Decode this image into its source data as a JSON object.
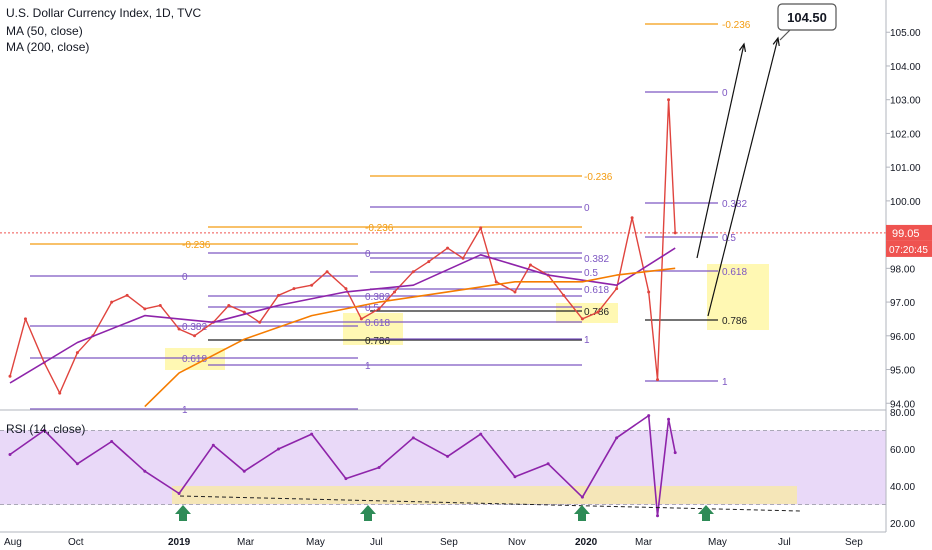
{
  "chart_data": {
    "type": "line",
    "title": "U.S. Dollar Currency Index, 1D, TVC",
    "indicators": [
      "MA (50, close)",
      "MA (200, close)"
    ],
    "rsi_label": "RSI (14, close)",
    "price_axis": {
      "ylim": [
        93.8,
        105.6
      ],
      "ticks": [
        "105.00",
        "104.00",
        "103.00",
        "102.00",
        "101.00",
        "100.00",
        "99.00",
        "98.00",
        "97.00",
        "96.00",
        "95.00",
        "94.00"
      ]
    },
    "rsi_axis": {
      "ylim": [
        19,
        81
      ],
      "ticks": [
        "80.00",
        "60.00",
        "40.00",
        "20.00"
      ],
      "band": [
        30,
        70
      ]
    },
    "x_axis_labels": [
      "Aug",
      "Oct",
      "2019",
      "Mar",
      "May",
      "Jul",
      "Sep",
      "Nov",
      "2020",
      "Mar",
      "May",
      "Jul",
      "Sep"
    ],
    "current_price": "99.05",
    "countdown": "07:20:45",
    "target_callout": "104.50",
    "fib_labels": {
      "set1": [
        "-0.236",
        "0",
        "0.382",
        "0.618",
        "1"
      ],
      "set2": [
        "-0.236",
        "0",
        "0.382",
        "0.5",
        "0.618",
        "0.786",
        "1"
      ],
      "set3": [
        "-0.236",
        "0",
        "0.382",
        "0.5",
        "0.618",
        "0.786",
        "1"
      ],
      "set4": [
        "-0.236",
        "0",
        "0.382",
        "0.5",
        "0.618",
        "0.786",
        "1"
      ]
    },
    "series": [
      {
        "name": "U.S. Dollar Currency Index",
        "x": [
          "2018-08-01",
          "2018-08-15",
          "2018-09-01",
          "2018-09-15",
          "2018-10-01",
          "2018-10-15",
          "2018-11-01",
          "2018-11-15",
          "2018-12-01",
          "2018-12-15",
          "2019-01-01",
          "2019-01-15",
          "2019-02-01",
          "2019-02-15",
          "2019-03-01",
          "2019-03-15",
          "2019-04-01",
          "2019-04-15",
          "2019-05-01",
          "2019-05-15",
          "2019-06-01",
          "2019-06-15",
          "2019-07-01",
          "2019-07-15",
          "2019-08-01",
          "2019-08-15",
          "2019-09-01",
          "2019-09-15",
          "2019-10-01",
          "2019-10-15",
          "2019-11-01",
          "2019-11-15",
          "2019-12-01",
          "2019-12-15",
          "2020-01-01",
          "2020-01-15",
          "2020-02-01",
          "2020-02-15",
          "2020-03-01",
          "2020-03-09",
          "2020-03-19",
          "2020-03-25"
        ],
        "values": [
          94.8,
          96.5,
          95.2,
          94.3,
          95.5,
          96.0,
          97.0,
          97.2,
          96.8,
          96.9,
          96.2,
          96.0,
          96.4,
          96.9,
          96.7,
          96.4,
          97.2,
          97.4,
          97.5,
          97.9,
          97.4,
          96.5,
          96.8,
          97.3,
          97.9,
          98.2,
          98.6,
          98.3,
          99.2,
          97.6,
          97.3,
          98.1,
          97.8,
          97.2,
          96.5,
          96.7,
          97.4,
          99.5,
          97.3,
          94.7,
          103.0,
          99.05
        ]
      },
      {
        "name": "MA (50, close)",
        "x": [
          "2018-08-01",
          "2018-10-01",
          "2018-12-01",
          "2019-02-01",
          "2019-04-01",
          "2019-06-01",
          "2019-08-01",
          "2019-10-01",
          "2019-12-01",
          "2020-02-01",
          "2020-03-25"
        ],
        "values": [
          94.6,
          95.8,
          96.6,
          96.4,
          96.9,
          97.3,
          97.5,
          98.4,
          97.8,
          97.5,
          98.6
        ]
      },
      {
        "name": "MA (200, close)",
        "x": [
          "2018-12-01",
          "2019-01-01",
          "2019-03-01",
          "2019-05-01",
          "2019-07-01",
          "2019-09-01",
          "2019-11-01",
          "2020-01-01",
          "2020-02-01",
          "2020-03-25"
        ],
        "values": [
          93.9,
          94.9,
          95.9,
          96.6,
          97.0,
          97.3,
          97.6,
          97.6,
          97.8,
          98.0
        ]
      },
      {
        "name": "RSI (14, close)",
        "x": [
          "2018-08-01",
          "2018-09-01",
          "2018-10-01",
          "2018-11-01",
          "2018-12-01",
          "2019-01-01",
          "2019-02-01",
          "2019-03-01",
          "2019-04-01",
          "2019-05-01",
          "2019-06-01",
          "2019-07-01",
          "2019-08-01",
          "2019-09-01",
          "2019-10-01",
          "2019-11-01",
          "2019-12-01",
          "2020-01-01",
          "2020-02-01",
          "2020-03-01",
          "2020-03-09",
          "2020-03-19",
          "2020-03-25"
        ],
        "values": [
          57,
          70,
          52,
          64,
          48,
          36,
          62,
          48,
          60,
          68,
          44,
          50,
          66,
          56,
          68,
          45,
          52,
          34,
          66,
          78,
          24,
          76,
          58
        ]
      }
    ]
  }
}
